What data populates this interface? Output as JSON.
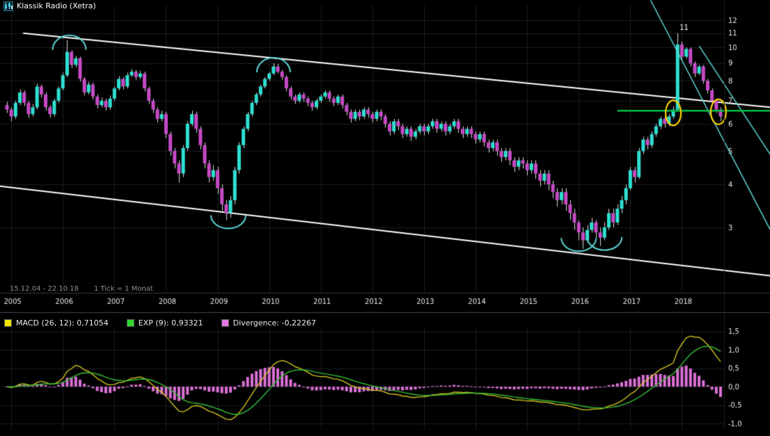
{
  "title": "Klassik Radio (Xetra)",
  "info": {
    "date_range": "15.12.04 - 22.10.18",
    "tick_interval": "1 Tick = 1 Monat"
  },
  "colors": {
    "background": "#000000",
    "grid": "#1d1d26",
    "axis_line": "#3a3a42",
    "panel_divider": "#47474f",
    "axis_text": "#e6e6e6",
    "up_candle": "#2ee0d2",
    "down_candle": "#c64ac6",
    "wick": "#dcdcdc",
    "trend_channel": "#ffffff",
    "cyan_line": "#5fd7d7",
    "green_line": "#00c040",
    "highlight_ellipse": "#ffd400",
    "macd_line": "#d2c41e",
    "exp_line": "#35c035",
    "divergence_bar": "#da70d6",
    "info_text": "#8f8f8f"
  },
  "chart_data": {
    "type": "candlestick",
    "title": "Klassik Radio (Xetra)",
    "scale": "logarithmic",
    "interval": "1 Monat",
    "date_range": "15.12.04 - 22.10.18",
    "start_month": "2004-12",
    "end_month": "2018-10",
    "ylim": [
      2.5,
      12.6
    ],
    "y_ticks": [
      12,
      11,
      10,
      9,
      8,
      7,
      6,
      5,
      4,
      3
    ],
    "x_ticks": [
      {
        "label": "2005",
        "month_index": 1
      },
      {
        "label": "2006",
        "month_index": 13
      },
      {
        "label": "2007",
        "month_index": 25
      },
      {
        "label": "2008",
        "month_index": 37
      },
      {
        "label": "2009",
        "month_index": 49
      },
      {
        "label": "2010",
        "month_index": 61
      },
      {
        "label": "2011",
        "month_index": 73
      },
      {
        "label": "2012",
        "month_index": 85
      },
      {
        "label": "2013",
        "month_index": 97
      },
      {
        "label": "2014",
        "month_index": 109
      },
      {
        "label": "2015",
        "month_index": 121
      },
      {
        "label": "2016",
        "month_index": 133
      },
      {
        "label": "2017",
        "month_index": 145
      },
      {
        "label": "2018",
        "month_index": 157
      }
    ],
    "ohlc": [
      [
        6.8,
        6.95,
        6.45,
        6.6
      ],
      [
        6.6,
        6.7,
        6.1,
        6.3
      ],
      [
        6.3,
        7.0,
        6.2,
        6.9
      ],
      [
        6.9,
        7.55,
        6.8,
        7.4
      ],
      [
        7.4,
        7.5,
        6.75,
        6.9
      ],
      [
        6.9,
        7.0,
        6.25,
        6.4
      ],
      [
        6.4,
        6.85,
        6.3,
        6.7
      ],
      [
        6.7,
        7.85,
        6.6,
        7.7
      ],
      [
        7.7,
        7.8,
        7.15,
        7.3
      ],
      [
        7.3,
        7.4,
        6.55,
        6.7
      ],
      [
        6.7,
        6.8,
        6.25,
        6.4
      ],
      [
        6.4,
        7.1,
        6.3,
        7.0
      ],
      [
        7.0,
        7.7,
        6.9,
        7.6
      ],
      [
        7.6,
        8.45,
        7.5,
        8.3
      ],
      [
        8.3,
        10.5,
        8.2,
        9.7
      ],
      [
        9.7,
        9.8,
        8.7,
        8.9
      ],
      [
        8.9,
        9.45,
        8.75,
        9.3
      ],
      [
        9.3,
        9.4,
        7.95,
        8.1
      ],
      [
        8.1,
        8.2,
        7.25,
        7.4
      ],
      [
        7.4,
        7.95,
        7.3,
        7.8
      ],
      [
        7.8,
        7.9,
        7.05,
        7.2
      ],
      [
        7.2,
        7.3,
        6.65,
        6.8
      ],
      [
        6.8,
        7.15,
        6.7,
        7.0
      ],
      [
        7.0,
        7.1,
        6.55,
        6.7
      ],
      [
        6.7,
        7.25,
        6.6,
        7.1
      ],
      [
        7.1,
        7.7,
        7.0,
        7.6
      ],
      [
        7.6,
        8.25,
        7.5,
        8.1
      ],
      [
        8.1,
        8.2,
        7.55,
        7.7
      ],
      [
        7.7,
        8.45,
        7.6,
        8.3
      ],
      [
        8.3,
        8.65,
        8.2,
        8.5
      ],
      [
        8.5,
        8.6,
        8.05,
        8.2
      ],
      [
        8.2,
        8.55,
        8.1,
        8.4
      ],
      [
        8.4,
        8.5,
        7.45,
        7.6
      ],
      [
        7.6,
        7.7,
        6.85,
        7.0
      ],
      [
        7.0,
        7.1,
        6.45,
        6.6
      ],
      [
        6.6,
        6.7,
        6.05,
        6.2
      ],
      [
        6.2,
        6.55,
        6.1,
        6.4
      ],
      [
        6.4,
        6.5,
        5.45,
        5.6
      ],
      [
        5.6,
        5.7,
        4.85,
        5.0
      ],
      [
        5.0,
        5.1,
        4.45,
        4.6
      ],
      [
        4.6,
        4.7,
        4.05,
        4.3
      ],
      [
        4.3,
        5.2,
        4.2,
        5.1
      ],
      [
        5.1,
        6.1,
        5.0,
        6.0
      ],
      [
        6.0,
        6.55,
        5.9,
        6.4
      ],
      [
        6.4,
        6.5,
        5.65,
        5.8
      ],
      [
        5.8,
        5.9,
        5.05,
        5.2
      ],
      [
        5.2,
        5.3,
        4.45,
        4.6
      ],
      [
        4.6,
        4.7,
        4.05,
        4.2
      ],
      [
        4.2,
        4.55,
        4.1,
        4.4
      ],
      [
        4.4,
        4.5,
        3.75,
        3.9
      ],
      [
        3.9,
        4.0,
        3.35,
        3.5
      ],
      [
        3.5,
        3.6,
        3.15,
        3.3
      ],
      [
        3.3,
        3.7,
        3.2,
        3.6
      ],
      [
        3.6,
        4.5,
        3.5,
        4.4
      ],
      [
        4.4,
        5.3,
        4.3,
        5.2
      ],
      [
        5.2,
        5.9,
        5.1,
        5.8
      ],
      [
        5.8,
        6.5,
        5.7,
        6.4
      ],
      [
        6.4,
        7.0,
        6.3,
        6.9
      ],
      [
        6.9,
        7.4,
        6.8,
        7.3
      ],
      [
        7.3,
        7.8,
        7.2,
        7.7
      ],
      [
        7.7,
        8.2,
        7.6,
        8.1
      ],
      [
        8.1,
        8.5,
        8.0,
        8.4
      ],
      [
        8.4,
        9.0,
        8.3,
        8.8
      ],
      [
        8.8,
        8.95,
        8.4,
        8.5
      ],
      [
        8.5,
        8.6,
        8.05,
        8.2
      ],
      [
        8.2,
        8.3,
        7.45,
        7.6
      ],
      [
        7.6,
        7.7,
        7.05,
        7.2
      ],
      [
        7.2,
        7.3,
        6.85,
        7.0
      ],
      [
        7.0,
        7.4,
        6.9,
        7.3
      ],
      [
        7.3,
        7.4,
        6.95,
        7.1
      ],
      [
        7.1,
        7.2,
        6.75,
        6.9
      ],
      [
        6.9,
        7.0,
        6.55,
        6.7
      ],
      [
        6.7,
        7.1,
        6.6,
        7.0
      ],
      [
        7.0,
        7.3,
        6.9,
        7.2
      ],
      [
        7.2,
        7.5,
        7.1,
        7.4
      ],
      [
        7.4,
        7.5,
        6.95,
        7.1
      ],
      [
        7.1,
        7.2,
        6.75,
        6.9
      ],
      [
        6.9,
        7.3,
        6.8,
        7.2
      ],
      [
        7.2,
        7.3,
        6.65,
        6.8
      ],
      [
        6.8,
        6.9,
        6.35,
        6.5
      ],
      [
        6.5,
        6.6,
        6.05,
        6.2
      ],
      [
        6.2,
        6.6,
        6.1,
        6.5
      ],
      [
        6.5,
        6.6,
        6.15,
        6.3
      ],
      [
        6.3,
        6.7,
        6.2,
        6.6
      ],
      [
        6.6,
        6.7,
        6.25,
        6.4
      ],
      [
        6.4,
        6.5,
        6.05,
        6.2
      ],
      [
        6.2,
        6.6,
        6.1,
        6.5
      ],
      [
        6.5,
        6.6,
        6.15,
        6.3
      ],
      [
        6.3,
        6.4,
        5.85,
        6.0
      ],
      [
        6.0,
        6.1,
        5.55,
        5.7
      ],
      [
        5.7,
        6.2,
        5.6,
        6.1
      ],
      [
        6.1,
        6.2,
        5.75,
        5.9
      ],
      [
        5.9,
        6.0,
        5.45,
        5.6
      ],
      [
        5.6,
        5.9,
        5.5,
        5.8
      ],
      [
        5.8,
        5.9,
        5.35,
        5.5
      ],
      [
        5.5,
        5.8,
        5.4,
        5.7
      ],
      [
        5.7,
        6.0,
        5.6,
        5.9
      ],
      [
        5.9,
        6.0,
        5.55,
        5.7
      ],
      [
        5.7,
        6.0,
        5.6,
        5.9
      ],
      [
        5.9,
        6.2,
        5.8,
        6.1
      ],
      [
        6.1,
        6.2,
        5.65,
        5.8
      ],
      [
        5.8,
        6.1,
        5.7,
        6.0
      ],
      [
        6.0,
        6.1,
        5.55,
        5.7
      ],
      [
        5.7,
        6.0,
        5.6,
        5.9
      ],
      [
        5.9,
        6.2,
        5.8,
        6.1
      ],
      [
        6.1,
        6.2,
        5.65,
        5.8
      ],
      [
        5.8,
        5.9,
        5.45,
        5.6
      ],
      [
        5.6,
        5.9,
        5.5,
        5.8
      ],
      [
        5.8,
        5.9,
        5.45,
        5.6
      ],
      [
        5.6,
        5.7,
        5.25,
        5.4
      ],
      [
        5.4,
        5.7,
        5.3,
        5.6
      ],
      [
        5.6,
        5.7,
        5.15,
        5.3
      ],
      [
        5.3,
        5.4,
        4.95,
        5.1
      ],
      [
        5.1,
        5.4,
        5.0,
        5.3
      ],
      [
        5.3,
        5.4,
        4.85,
        5.0
      ],
      [
        5.0,
        5.1,
        4.65,
        4.8
      ],
      [
        4.8,
        5.1,
        4.7,
        5.0
      ],
      [
        5.0,
        5.1,
        4.55,
        4.7
      ],
      [
        4.7,
        4.8,
        4.35,
        4.5
      ],
      [
        4.5,
        4.8,
        4.4,
        4.7
      ],
      [
        4.7,
        4.8,
        4.45,
        4.6
      ],
      [
        4.6,
        4.7,
        4.25,
        4.4
      ],
      [
        4.4,
        4.7,
        4.3,
        4.6
      ],
      [
        4.6,
        4.7,
        4.15,
        4.3
      ],
      [
        4.3,
        4.4,
        3.95,
        4.1
      ],
      [
        4.1,
        4.4,
        4.0,
        4.3
      ],
      [
        4.3,
        4.4,
        3.85,
        4.0
      ],
      [
        4.0,
        4.1,
        3.65,
        3.8
      ],
      [
        3.8,
        3.9,
        3.45,
        3.6
      ],
      [
        3.6,
        3.9,
        3.5,
        3.8
      ],
      [
        3.8,
        3.9,
        3.35,
        3.5
      ],
      [
        3.5,
        3.6,
        3.15,
        3.3
      ],
      [
        3.3,
        3.4,
        2.95,
        3.1
      ],
      [
        3.1,
        3.15,
        2.75,
        2.9
      ],
      [
        2.9,
        3.0,
        2.6,
        2.75
      ],
      [
        2.75,
        3.05,
        2.7,
        2.95
      ],
      [
        2.95,
        3.2,
        2.9,
        3.1
      ],
      [
        3.1,
        3.15,
        2.8,
        2.9
      ],
      [
        2.9,
        3.0,
        2.65,
        2.8
      ],
      [
        2.8,
        3.1,
        2.75,
        3.0
      ],
      [
        3.0,
        3.4,
        2.95,
        3.3
      ],
      [
        3.3,
        3.4,
        3.0,
        3.1
      ],
      [
        3.1,
        3.5,
        3.05,
        3.4
      ],
      [
        3.4,
        3.7,
        3.3,
        3.6
      ],
      [
        3.6,
        4.0,
        3.5,
        3.9
      ],
      [
        3.9,
        4.5,
        3.85,
        4.4
      ],
      [
        4.4,
        4.5,
        4.05,
        4.2
      ],
      [
        4.2,
        5.1,
        4.15,
        5.0
      ],
      [
        5.0,
        5.5,
        4.9,
        5.4
      ],
      [
        5.4,
        5.5,
        5.05,
        5.2
      ],
      [
        5.2,
        5.7,
        5.1,
        5.6
      ],
      [
        5.6,
        6.0,
        5.5,
        5.9
      ],
      [
        5.9,
        6.3,
        5.8,
        6.2
      ],
      [
        6.2,
        6.3,
        5.85,
        6.0
      ],
      [
        6.0,
        6.4,
        5.9,
        6.3
      ],
      [
        6.3,
        6.75,
        6.2,
        6.6
      ],
      [
        6.6,
        11.0,
        6.5,
        10.2
      ],
      [
        10.2,
        10.4,
        9.2,
        9.4
      ],
      [
        9.4,
        10.0,
        9.3,
        9.9
      ],
      [
        9.9,
        10.0,
        8.8,
        9.0
      ],
      [
        9.0,
        9.1,
        8.2,
        8.4
      ],
      [
        8.4,
        8.9,
        8.3,
        8.8
      ],
      [
        8.8,
        8.9,
        7.85,
        8.0
      ],
      [
        8.0,
        8.1,
        7.35,
        7.5
      ],
      [
        7.5,
        7.6,
        6.85,
        7.0
      ],
      [
        7.0,
        7.1,
        6.45,
        6.6
      ],
      [
        6.6,
        6.7,
        6.1,
        6.3
      ]
    ],
    "annotations": {
      "peak_label": {
        "text": "11",
        "month_index": 156,
        "price": 11.0
      },
      "green_hline": {
        "price": 6.55,
        "from_month_index": 142
      },
      "white_channel": [
        {
          "x1": 0.03,
          "p1": 11.0,
          "x2": 1.0,
          "p2": 6.7
        },
        {
          "x1": 0.0,
          "p1": 3.95,
          "x2": 1.0,
          "p2": 2.17
        }
      ],
      "cyan_trendlines": [
        {
          "x1": 0.845,
          "p1": 13.7,
          "x2": 1.0,
          "p2": 2.96
        },
        {
          "x1": 0.908,
          "p1": 10.1,
          "x2": 1.0,
          "p2": 4.9
        }
      ],
      "cycle_arcs": [
        {
          "month_index": 14.5,
          "price": 10.4,
          "type": "peak"
        },
        {
          "month_index": 62,
          "price": 8.95,
          "type": "peak"
        },
        {
          "month_index": 51.5,
          "price": 3.12,
          "type": "trough"
        },
        {
          "month_index": 133,
          "price": 2.68,
          "type": "trough"
        },
        {
          "month_index": 139,
          "price": 2.7,
          "type": "trough"
        }
      ],
      "highlight_ellipses": [
        {
          "month_index": 155,
          "price": 6.45
        },
        {
          "month_index": 165.5,
          "price": 6.5
        }
      ]
    },
    "indicator": {
      "type": "MACD",
      "params": {
        "fast": 12,
        "slow": 26,
        "signal": 9
      },
      "macd_value": "0,71054",
      "exp_value": "0,93321",
      "divergence_value": "-0,22267",
      "legend": [
        {
          "label": "MACD (26, 12): 0,71054",
          "color": "#f2e600"
        },
        {
          "label": "EXP (9): 0,93321",
          "color": "#2fd42f"
        },
        {
          "label": "Divergence: -0,22267",
          "color": "#e07ae0"
        }
      ],
      "y_ticks": [
        "1,5",
        "1,0",
        "0,5",
        "0,0",
        "-0,5",
        "-1,0"
      ],
      "y_tick_values": [
        1.5,
        1.0,
        0.5,
        0.0,
        -0.5,
        -1.0
      ],
      "ylim": [
        -1.25,
        1.6
      ]
    }
  }
}
